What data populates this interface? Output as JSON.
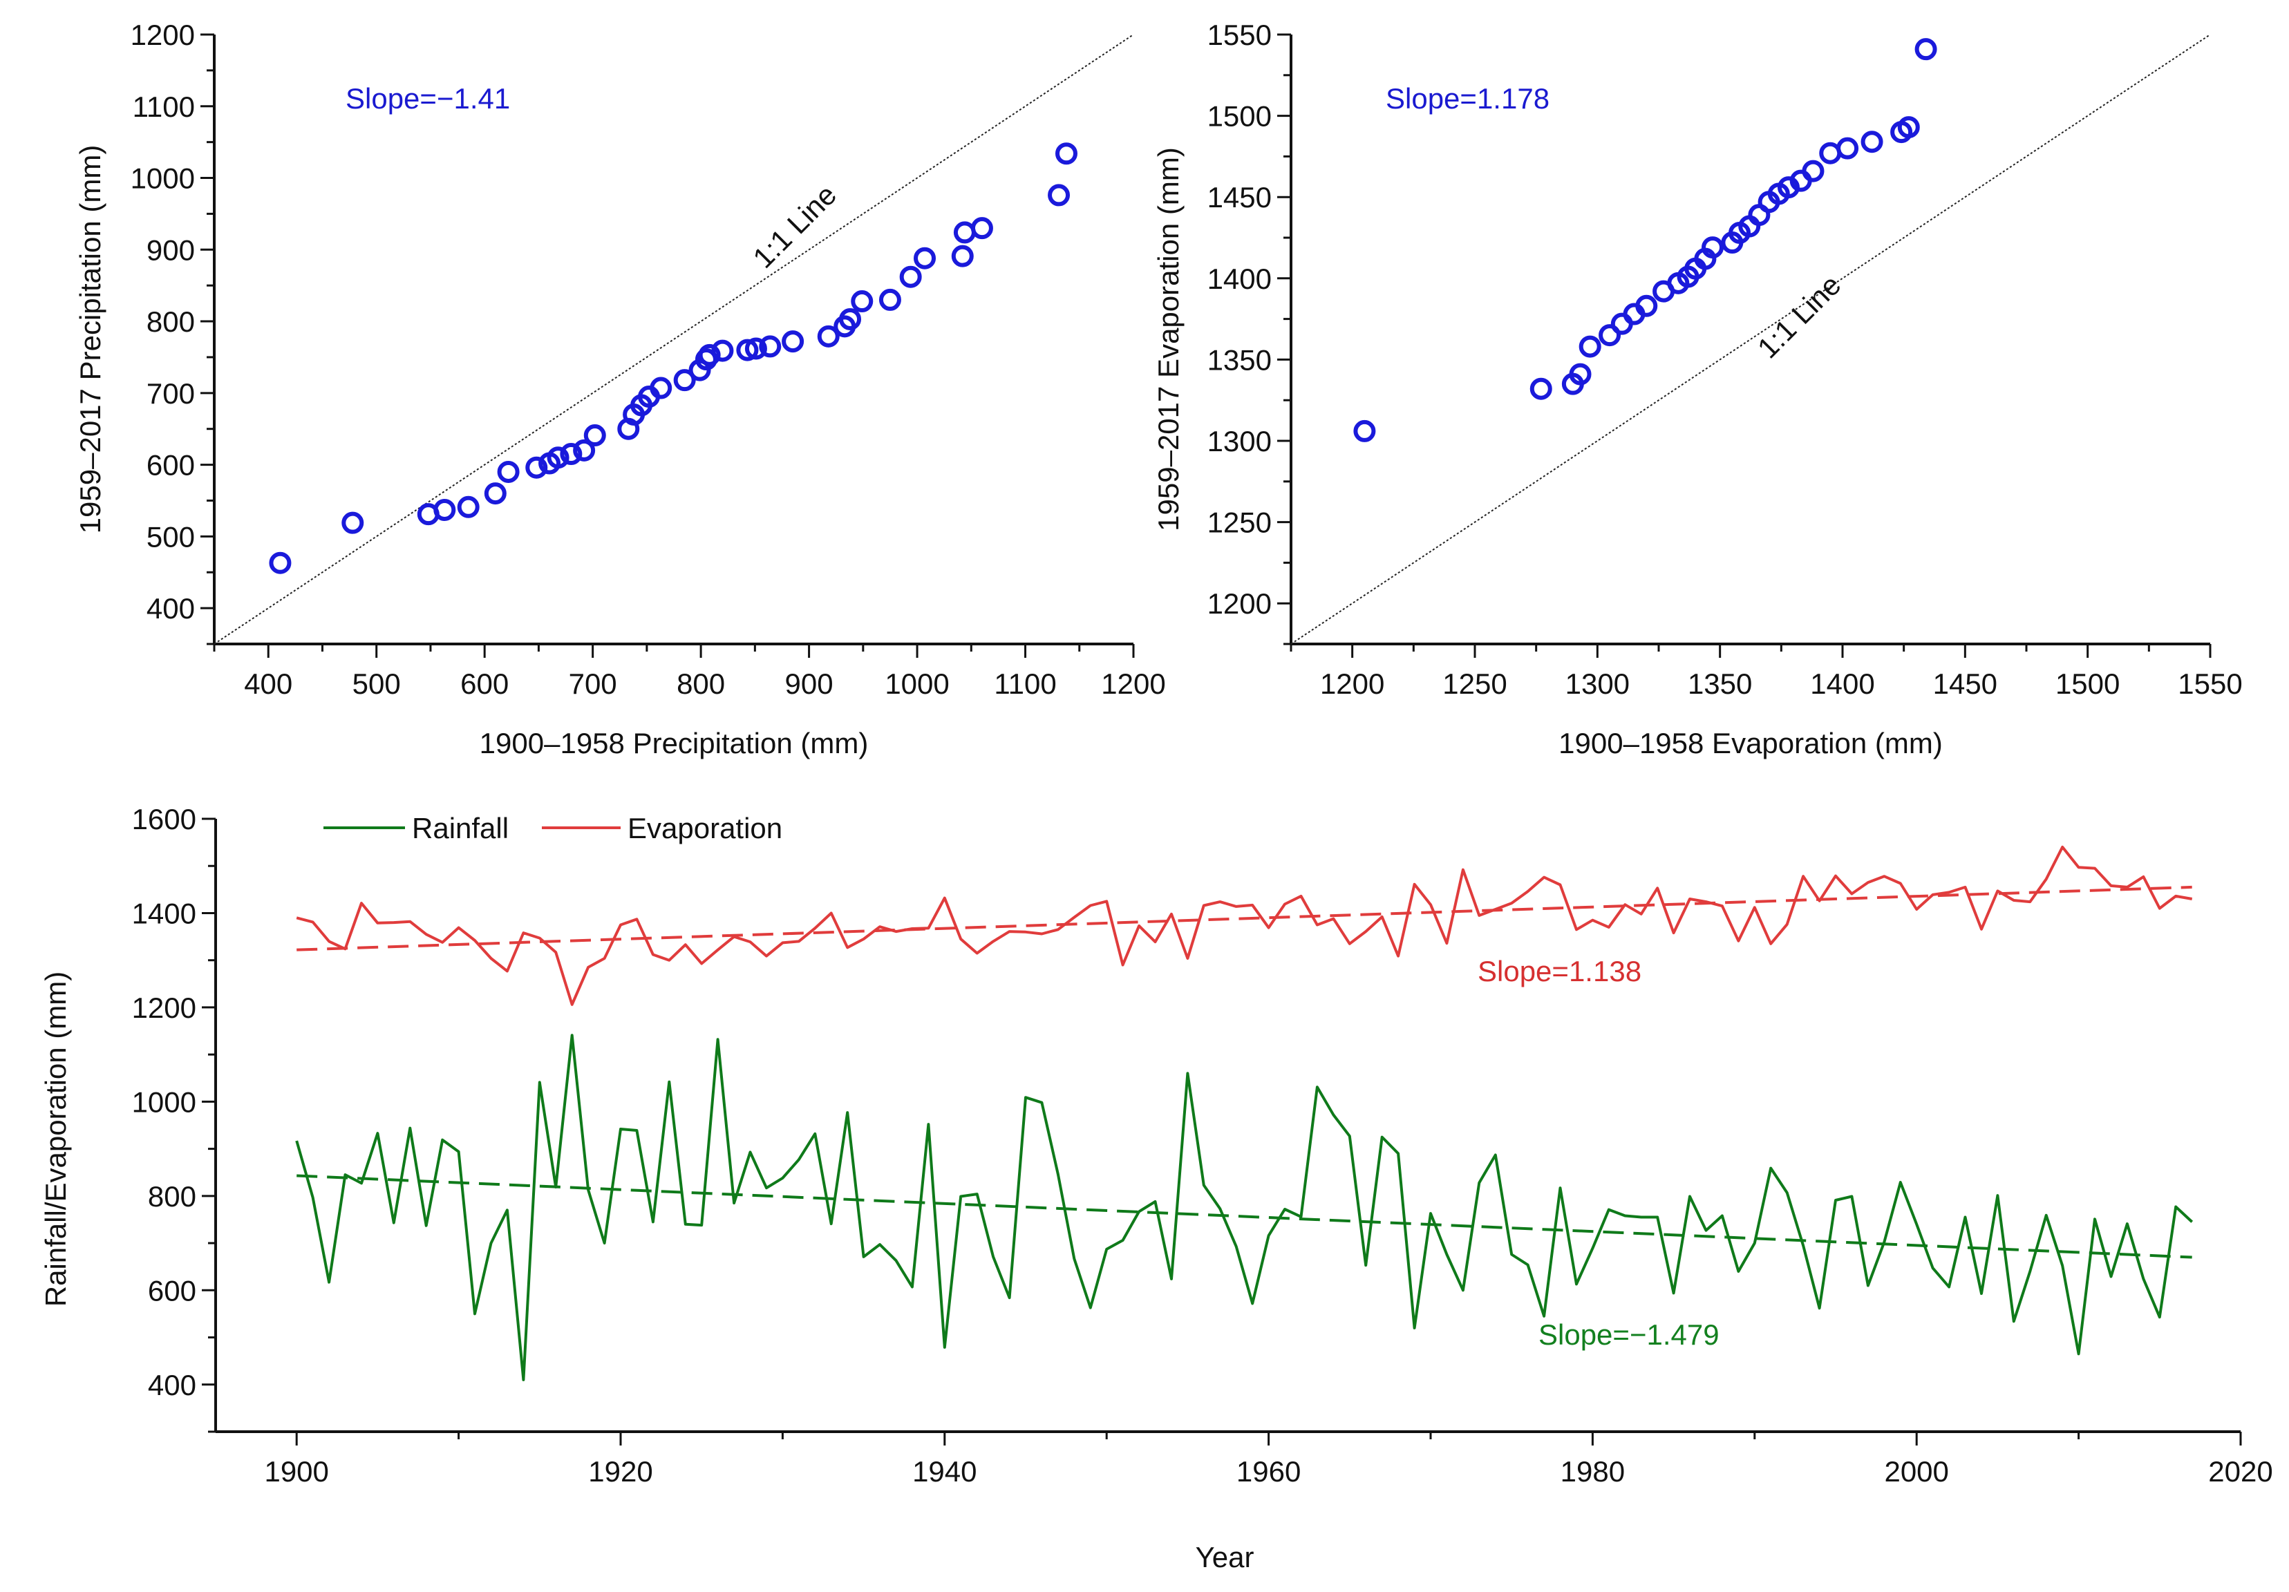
{
  "chart_data": [
    {
      "type": "scatter",
      "id": "precip",
      "title": "",
      "xlabel": "1900–1958 Precipitation (mm)",
      "ylabel": "1959–2017 Precipitation (mm)",
      "xlim": [
        350,
        1200
      ],
      "ylim": [
        350,
        1200
      ],
      "xticks": [
        400,
        500,
        600,
        700,
        800,
        900,
        1000,
        1100,
        1200
      ],
      "yticks": [
        400,
        500,
        600,
        700,
        800,
        900,
        1000,
        1100,
        1200
      ],
      "slope_label": "Slope=−1.41",
      "ref_line": {
        "label": "1:1 Line",
        "from": [
          350,
          350
        ],
        "to": [
          1200,
          1200
        ]
      },
      "marker_color": "#1a1adb",
      "x": [
        411,
        478,
        548,
        563,
        585,
        610,
        622,
        648,
        660,
        668,
        680,
        692,
        702,
        733,
        738,
        745,
        752,
        763,
        785,
        799,
        805,
        808,
        820,
        843,
        851,
        864,
        885,
        918,
        933,
        938,
        949,
        975,
        994,
        1007,
        1042,
        1044,
        1060,
        1131,
        1138
      ],
      "y": [
        463,
        519,
        531,
        537,
        541,
        560,
        590,
        596,
        602,
        610,
        615,
        620,
        641,
        650,
        670,
        683,
        695,
        707,
        718,
        732,
        747,
        753,
        759,
        760,
        762,
        765,
        772,
        779,
        793,
        803,
        828,
        830,
        862,
        888,
        891,
        924,
        930,
        976,
        1034
      ]
    },
    {
      "type": "scatter",
      "id": "evap",
      "title": "",
      "xlabel": "1900–1958 Evaporation (mm)",
      "ylabel": "1959–2017 Evaporation (mm)",
      "xlim": [
        1175,
        1550
      ],
      "ylim": [
        1175,
        1550
      ],
      "xticks": [
        1200,
        1250,
        1300,
        1350,
        1400,
        1450,
        1500,
        1550
      ],
      "yticks": [
        1200,
        1250,
        1300,
        1350,
        1400,
        1450,
        1500,
        1550
      ],
      "slope_label": "Slope=1.178",
      "ref_line": {
        "label": "1:1 Line",
        "from": [
          1175,
          1175
        ],
        "to": [
          1550,
          1550
        ]
      },
      "marker_color": "#1a1adb",
      "x": [
        1205,
        1277,
        1290,
        1293,
        1297,
        1305,
        1310,
        1315,
        1320,
        1327,
        1333,
        1337,
        1340,
        1344,
        1347,
        1355,
        1358,
        1362,
        1366,
        1370,
        1374,
        1378,
        1383,
        1388,
        1395,
        1402,
        1412,
        1424,
        1427,
        1434
      ],
      "y": [
        1306,
        1332,
        1335,
        1341,
        1358,
        1365,
        1372,
        1378,
        1383,
        1392,
        1397,
        1401,
        1406,
        1412,
        1419,
        1422,
        1428,
        1432,
        1439,
        1447,
        1452,
        1456,
        1460,
        1466,
        1477,
        1480,
        1484,
        1490,
        1493,
        1541
      ]
    },
    {
      "type": "line",
      "id": "series",
      "title": "",
      "xlabel": "Year",
      "ylabel": "Rainfall/Evaporation (mm)",
      "xlim": [
        1895,
        2020
      ],
      "ylim": [
        300,
        1600
      ],
      "xticks": [
        1900,
        1920,
        1940,
        1960,
        1980,
        2000,
        2020
      ],
      "yticks": [
        400,
        600,
        800,
        1000,
        1200,
        1400,
        1600
      ],
      "x_start": 1900,
      "series": [
        {
          "name": "Rainfall",
          "color": "#0f7a1a",
          "slope_label": "Slope=−1.479",
          "trend": [
            [
              1900,
              843
            ],
            [
              2017,
              670
            ]
          ],
          "values": [
            917,
            797,
            617,
            845,
            827,
            933,
            743,
            944,
            737,
            919,
            894,
            550,
            700,
            770,
            410,
            1041,
            819,
            1141,
            813,
            700,
            942,
            939,
            745,
            1042,
            740,
            738,
            1132,
            785,
            893,
            817,
            838,
            877,
            932,
            741,
            977,
            671,
            697,
            663,
            607,
            952,
            479,
            799,
            804,
            671,
            584,
            1009,
            998,
            846,
            667,
            563,
            687,
            706,
            767,
            788,
            624,
            1060,
            823,
            773,
            693,
            572,
            716,
            772,
            756,
            1031,
            972,
            927,
            653,
            925,
            890,
            520,
            763,
            676,
            600,
            828,
            887,
            676,
            654,
            545,
            817,
            613,
            689,
            771,
            758,
            755,
            755,
            594,
            799,
            727,
            758,
            640,
            700,
            859,
            807,
            695,
            562,
            791,
            799,
            610,
            702,
            829,
            740,
            647,
            607,
            755,
            593,
            801,
            534,
            640,
            759,
            652,
            465,
            751,
            629,
            741,
            624,
            543,
            777,
            745
          ]
        },
        {
          "name": "Evaporation",
          "color": "#e03c3c",
          "slope_label": "Slope=1.138",
          "trend": [
            [
              1900,
              1322
            ],
            [
              2017,
              1455
            ]
          ],
          "values": [
            1390,
            1381,
            1340,
            1324,
            1421,
            1379,
            1380,
            1382,
            1355,
            1338,
            1369,
            1342,
            1304,
            1277,
            1358,
            1347,
            1317,
            1206,
            1285,
            1304,
            1375,
            1387,
            1312,
            1300,
            1333,
            1293,
            1322,
            1350,
            1339,
            1309,
            1337,
            1340,
            1368,
            1400,
            1327,
            1345,
            1371,
            1361,
            1367,
            1368,
            1432,
            1345,
            1315,
            1340,
            1361,
            1360,
            1356,
            1365,
            1391,
            1416,
            1425,
            1290,
            1373,
            1339,
            1398,
            1304,
            1416,
            1424,
            1414,
            1417,
            1369,
            1419,
            1436,
            1375,
            1388,
            1335,
            1361,
            1392,
            1309,
            1461,
            1418,
            1336,
            1492,
            1395,
            1408,
            1421,
            1446,
            1476,
            1460,
            1365,
            1385,
            1370,
            1418,
            1398,
            1453,
            1358,
            1430,
            1424,
            1415,
            1341,
            1412,
            1335,
            1376,
            1478,
            1426,
            1479,
            1441,
            1465,
            1478,
            1463,
            1408,
            1439,
            1444,
            1455,
            1366,
            1447,
            1427,
            1424,
            1472,
            1540,
            1497,
            1495,
            1458,
            1455,
            1477,
            1410,
            1436,
            1430
          ]
        }
      ],
      "legend": [
        "Rainfall",
        "Evaporation"
      ],
      "legend_position": "top-left"
    }
  ]
}
